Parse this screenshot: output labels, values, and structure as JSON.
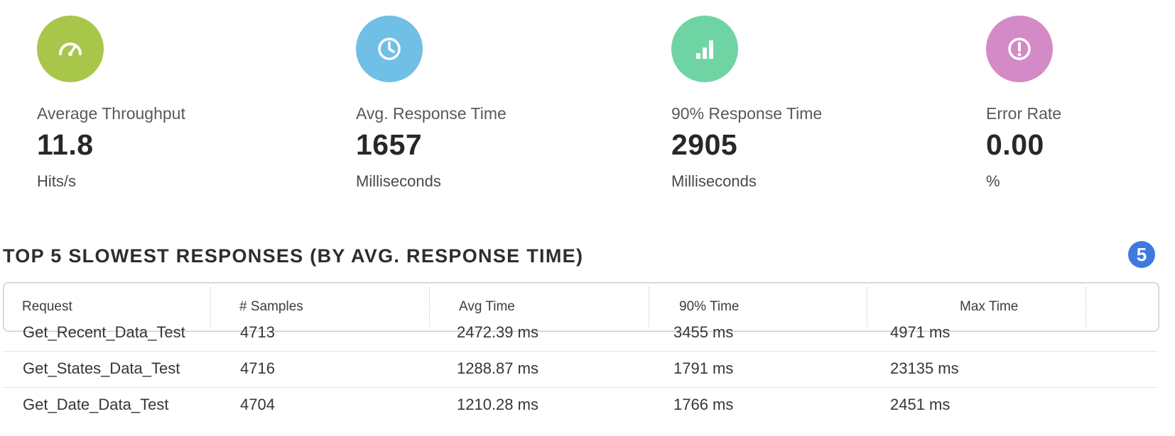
{
  "metrics": [
    {
      "label": "Average Throughput",
      "value": "11.8",
      "unit": "Hits/s",
      "color": "#a8c64a",
      "icon": "speedometer-icon"
    },
    {
      "label": "Avg. Response Time",
      "value": "1657",
      "unit": "Milliseconds",
      "color": "#6fbfe6",
      "icon": "clock-icon"
    },
    {
      "label": "90% Response Time",
      "value": "2905",
      "unit": "Milliseconds",
      "color": "#6fd4a4",
      "icon": "signal-bars-icon"
    },
    {
      "label": "Error Rate",
      "value": "0.00",
      "unit": "%",
      "color": "#d38ac6",
      "icon": "alert-circle-icon"
    }
  ],
  "slowest": {
    "title": "TOP 5 SLOWEST RESPONSES (BY AVG. RESPONSE TIME)",
    "count": "5",
    "badge_color": "#3d7ae0",
    "columns": [
      "Request",
      "# Samples",
      "Avg Time",
      "90% Time",
      "Max Time"
    ],
    "rows": [
      [
        "Get_Recent_Data_Test",
        "4713",
        "2472.39 ms",
        "3455 ms",
        "4971 ms"
      ],
      [
        "Get_States_Data_Test",
        "4716",
        "1288.87 ms",
        "1791 ms",
        "23135 ms"
      ],
      [
        "Get_Date_Data_Test",
        "4704",
        "1210.28 ms",
        "1766 ms",
        "2451 ms"
      ]
    ]
  }
}
